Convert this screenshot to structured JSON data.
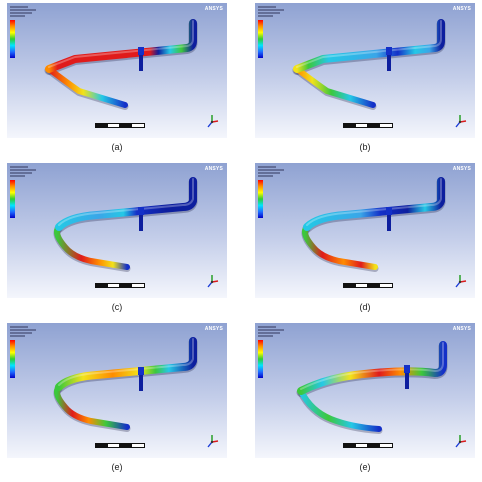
{
  "panels": [
    {
      "label": "(a)",
      "brand": "ANSYS",
      "scheme": "a"
    },
    {
      "label": "(b)",
      "brand": "ANSYS",
      "scheme": "b"
    },
    {
      "label": "(c)",
      "brand": "ANSYS",
      "scheme": "c"
    },
    {
      "label": "(d)",
      "brand": "ANSYS",
      "scheme": "d"
    },
    {
      "label": "(e)",
      "brand": "ANSYS",
      "scheme": "e"
    },
    {
      "label": "(e)",
      "brand": "ANSYS",
      "scheme": "f"
    }
  ],
  "colors": {
    "red": "#e01b1b",
    "orange": "#ff8c00",
    "yellow": "#f2e21a",
    "green": "#3cc83c",
    "cyan": "#25c8e6",
    "lightblue": "#3aa6e8",
    "blue": "#1430c8",
    "navy": "#0d1e9e"
  }
}
